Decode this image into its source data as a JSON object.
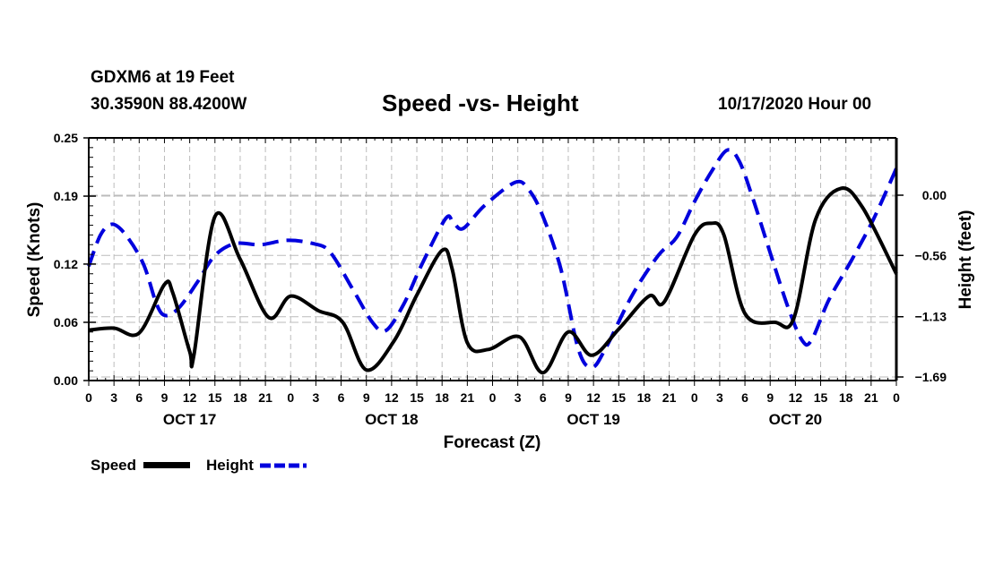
{
  "header": {
    "station": "GDXM6 at 19 Feet",
    "coords": "30.3590N 88.4200W",
    "title": "Speed -vs- Height",
    "datetime": "10/17/2020 Hour 00"
  },
  "colors": {
    "speed": "#000000",
    "height": "#0000dd",
    "grid": "#bbbbbb"
  },
  "chart_data": {
    "type": "line",
    "title": "Speed -vs- Height",
    "xlabel": "Forecast (Z)",
    "ylabel": "Speed (Knots)",
    "y2label": "Height (feet)",
    "xlim": [
      0,
      96
    ],
    "ylim": [
      0.0,
      0.25
    ],
    "y2lim": [
      -1.69,
      0.56
    ],
    "grid": true,
    "x_ticks": [
      0,
      3,
      6,
      9,
      12,
      15,
      18,
      21,
      24,
      27,
      30,
      33,
      36,
      39,
      42,
      45,
      48,
      51,
      54,
      57,
      60,
      63,
      66,
      69,
      72,
      75,
      78,
      81,
      84,
      87,
      90,
      93,
      96
    ],
    "x_tick_labels": [
      "0",
      "3",
      "6",
      "9",
      "12",
      "15",
      "18",
      "21",
      "0",
      "3",
      "6",
      "9",
      "12",
      "15",
      "18",
      "21",
      "0",
      "3",
      "6",
      "9",
      "12",
      "15",
      "18",
      "21",
      "0",
      "3",
      "6",
      "9",
      "12",
      "15",
      "18",
      "21",
      "0"
    ],
    "day_labels": [
      {
        "label": "OCT 17",
        "hour": 12
      },
      {
        "label": "OCT 18",
        "hour": 36
      },
      {
        "label": "OCT 19",
        "hour": 60
      },
      {
        "label": "OCT 20",
        "hour": 84
      }
    ],
    "y_ticks": [
      0.0,
      0.06,
      0.12,
      0.19,
      0.25
    ],
    "y_tick_labels": [
      "0.00",
      "0.06",
      "0.12",
      "0.19",
      "0.25"
    ],
    "y2_ticks": [
      0.0,
      -0.56,
      -1.13,
      -1.69
    ],
    "y2_tick_labels": [
      "0.00",
      "-0.56",
      "-1.13",
      "-1.69"
    ],
    "legend": {
      "placement": "bottom-left",
      "entries": [
        "Speed",
        "Height"
      ]
    },
    "series": [
      {
        "name": "Speed",
        "axis": "left",
        "style": "solid",
        "x": [
          0,
          3,
          6,
          9,
          10,
          12,
          12.5,
          15,
          18,
          21.4,
          24,
          27.3,
          30.2,
          33,
          36.3,
          39,
          42,
          43.2,
          45,
          47.5,
          51.2,
          54,
          57,
          59.8,
          63,
          66.6,
          68.4,
          72,
          74,
          75.5,
          78,
          81.6,
          83.8,
          86.4,
          89.4,
          92,
          96
        ],
        "values": [
          0.052,
          0.054,
          0.049,
          0.099,
          0.09,
          0.03,
          0.026,
          0.169,
          0.125,
          0.065,
          0.087,
          0.072,
          0.06,
          0.011,
          0.041,
          0.088,
          0.134,
          0.115,
          0.039,
          0.032,
          0.045,
          0.008,
          0.05,
          0.026,
          0.053,
          0.087,
          0.081,
          0.15,
          0.162,
          0.15,
          0.069,
          0.06,
          0.064,
          0.166,
          0.198,
          0.178,
          0.11
        ]
      },
      {
        "name": "Height",
        "axis": "right",
        "style": "dashed",
        "x": [
          0,
          1.4,
          2.8,
          4.4,
          6.5,
          8.1,
          9.2,
          10.8,
          12.9,
          15,
          17.4,
          20.4,
          23.6,
          26.7,
          28.7,
          31.5,
          33.7,
          35.3,
          37.4,
          39.5,
          42.4,
          43.3,
          44.5,
          47,
          50.7,
          52.3,
          53.9,
          56.1,
          58.2,
          59.8,
          61.4,
          64.6,
          67.7,
          69.9,
          72,
          74.1,
          75.9,
          77.3,
          78.9,
          81.1,
          83.2,
          84.8,
          85.9,
          88,
          90.7,
          93.3,
          96
        ],
        "values": [
          -0.66,
          -0.37,
          -0.27,
          -0.37,
          -0.64,
          -1.02,
          -1.12,
          -1.04,
          -0.81,
          -0.56,
          -0.45,
          -0.46,
          -0.42,
          -0.45,
          -0.53,
          -0.89,
          -1.18,
          -1.26,
          -1.02,
          -0.66,
          -0.22,
          -0.25,
          -0.31,
          -0.1,
          0.12,
          0.05,
          -0.18,
          -0.68,
          -1.43,
          -1.6,
          -1.43,
          -0.93,
          -0.56,
          -0.39,
          -0.06,
          0.23,
          0.42,
          0.32,
          -0.02,
          -0.56,
          -1.06,
          -1.35,
          -1.35,
          -0.97,
          -0.6,
          -0.22,
          0.25
        ]
      }
    ]
  }
}
